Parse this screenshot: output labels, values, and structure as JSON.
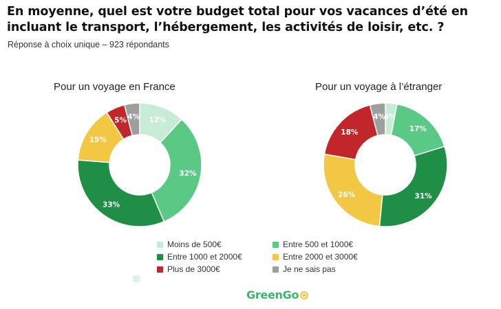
{
  "title": "En moyenne, quel est votre budget total pour vos vacances d’été en incluant le transport, l’hébergement, les activités de loisir, etc. ?",
  "subtitle": "Réponse à choix unique   – 923 répondants",
  "colors": {
    "moins_500": "#c6ecd3",
    "500_1000": "#5ac985",
    "1000_2000": "#1e8f45",
    "2000_3000": "#f2c744",
    "plus_3000": "#c0262a",
    "ne_sais_pas": "#9e9e9e",
    "logo_green": "#3bb56a",
    "logo_yellow": "#f2c744"
  },
  "legend": [
    {
      "label": "Moins de 500€",
      "color": "#c6ecd3"
    },
    {
      "label": "Entre 500 et 1000€",
      "color": "#5ac985"
    },
    {
      "label": "Entre 1000 et 2000€",
      "color": "#1e8f45"
    },
    {
      "label": "Entre 2000 et 3000€",
      "color": "#f2c744"
    },
    {
      "label": "Plus de 3000€",
      "color": "#c0262a"
    },
    {
      "label": "Je ne sais pas",
      "color": "#9e9e9e"
    }
  ],
  "logo": {
    "text": "GreenGo",
    "icon": "coin-icon"
  },
  "chart_data": [
    {
      "type": "pie",
      "title": "Pour un voyage en France",
      "categories": [
        "Moins de 500€",
        "Entre 500 et 1000€",
        "Entre 1000 et 2000€",
        "Entre 2000 et 3000€",
        "Plus de 3000€",
        "Je ne sais pas"
      ],
      "values": [
        12,
        32,
        33,
        15,
        5,
        4
      ],
      "labels": [
        "12%",
        "32%",
        "33%",
        "15%",
        "5%",
        "4%"
      ],
      "donut": true
    },
    {
      "type": "pie",
      "title": "Pour un voyage à l’étranger",
      "categories": [
        "Moins de 500€",
        "Entre 500 et 1000€",
        "Entre 1000 et 2000€",
        "Entre 2000 et 3000€",
        "Plus de 3000€",
        "Je ne sais pas"
      ],
      "values": [
        3,
        17,
        31,
        26,
        18,
        4
      ],
      "labels": [
        "3%",
        "17%",
        "31%",
        "26%",
        "18%",
        "4%"
      ],
      "donut": true
    }
  ]
}
